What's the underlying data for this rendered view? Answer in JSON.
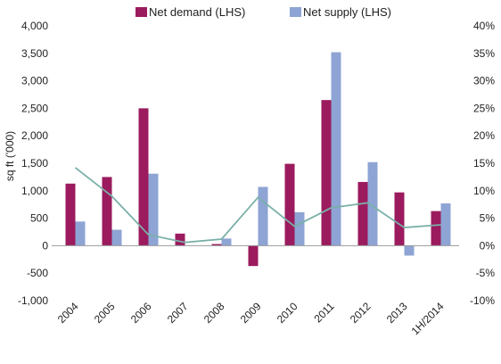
{
  "chart_data": {
    "type": "bar",
    "categories": [
      "2004",
      "2005",
      "2006",
      "2007",
      "2008",
      "2009",
      "2010",
      "2011",
      "2012",
      "2013",
      "1H/2014"
    ],
    "series": [
      {
        "name": "Net demand (LHS)",
        "type": "bar",
        "axis": "left",
        "color": "#9b1b5e",
        "values": [
          1130,
          1250,
          2500,
          220,
          30,
          -370,
          1490,
          2650,
          1160,
          970,
          630
        ]
      },
      {
        "name": "Net supply (LHS)",
        "type": "bar",
        "axis": "left",
        "color": "#8ea4d4",
        "values": [
          440,
          290,
          1310,
          0,
          130,
          1070,
          610,
          3520,
          1520,
          -180,
          770
        ]
      },
      {
        "name": "",
        "type": "line",
        "axis": "right",
        "color": "#7ab0a8",
        "values": [
          14.2,
          9.0,
          2.0,
          0.6,
          1.2,
          8.8,
          3.5,
          6.9,
          7.8,
          3.3,
          3.8
        ]
      }
    ],
    "ylabel": "sq ft ('000)",
    "ylim": [
      -1000,
      4000
    ],
    "y_ticks": [
      "-1,000",
      "-500",
      "0",
      "500",
      "1,000",
      "1,500",
      "2,000",
      "2,500",
      "3,000",
      "3,500",
      "4,000"
    ],
    "y2lim": [
      -10,
      40
    ],
    "y2_ticks": [
      "-10%",
      "-5%",
      "0%",
      "5%",
      "10%",
      "15%",
      "20%",
      "25%",
      "30%",
      "35%",
      "40%"
    ],
    "legend_position": "top-center",
    "grid": false
  }
}
